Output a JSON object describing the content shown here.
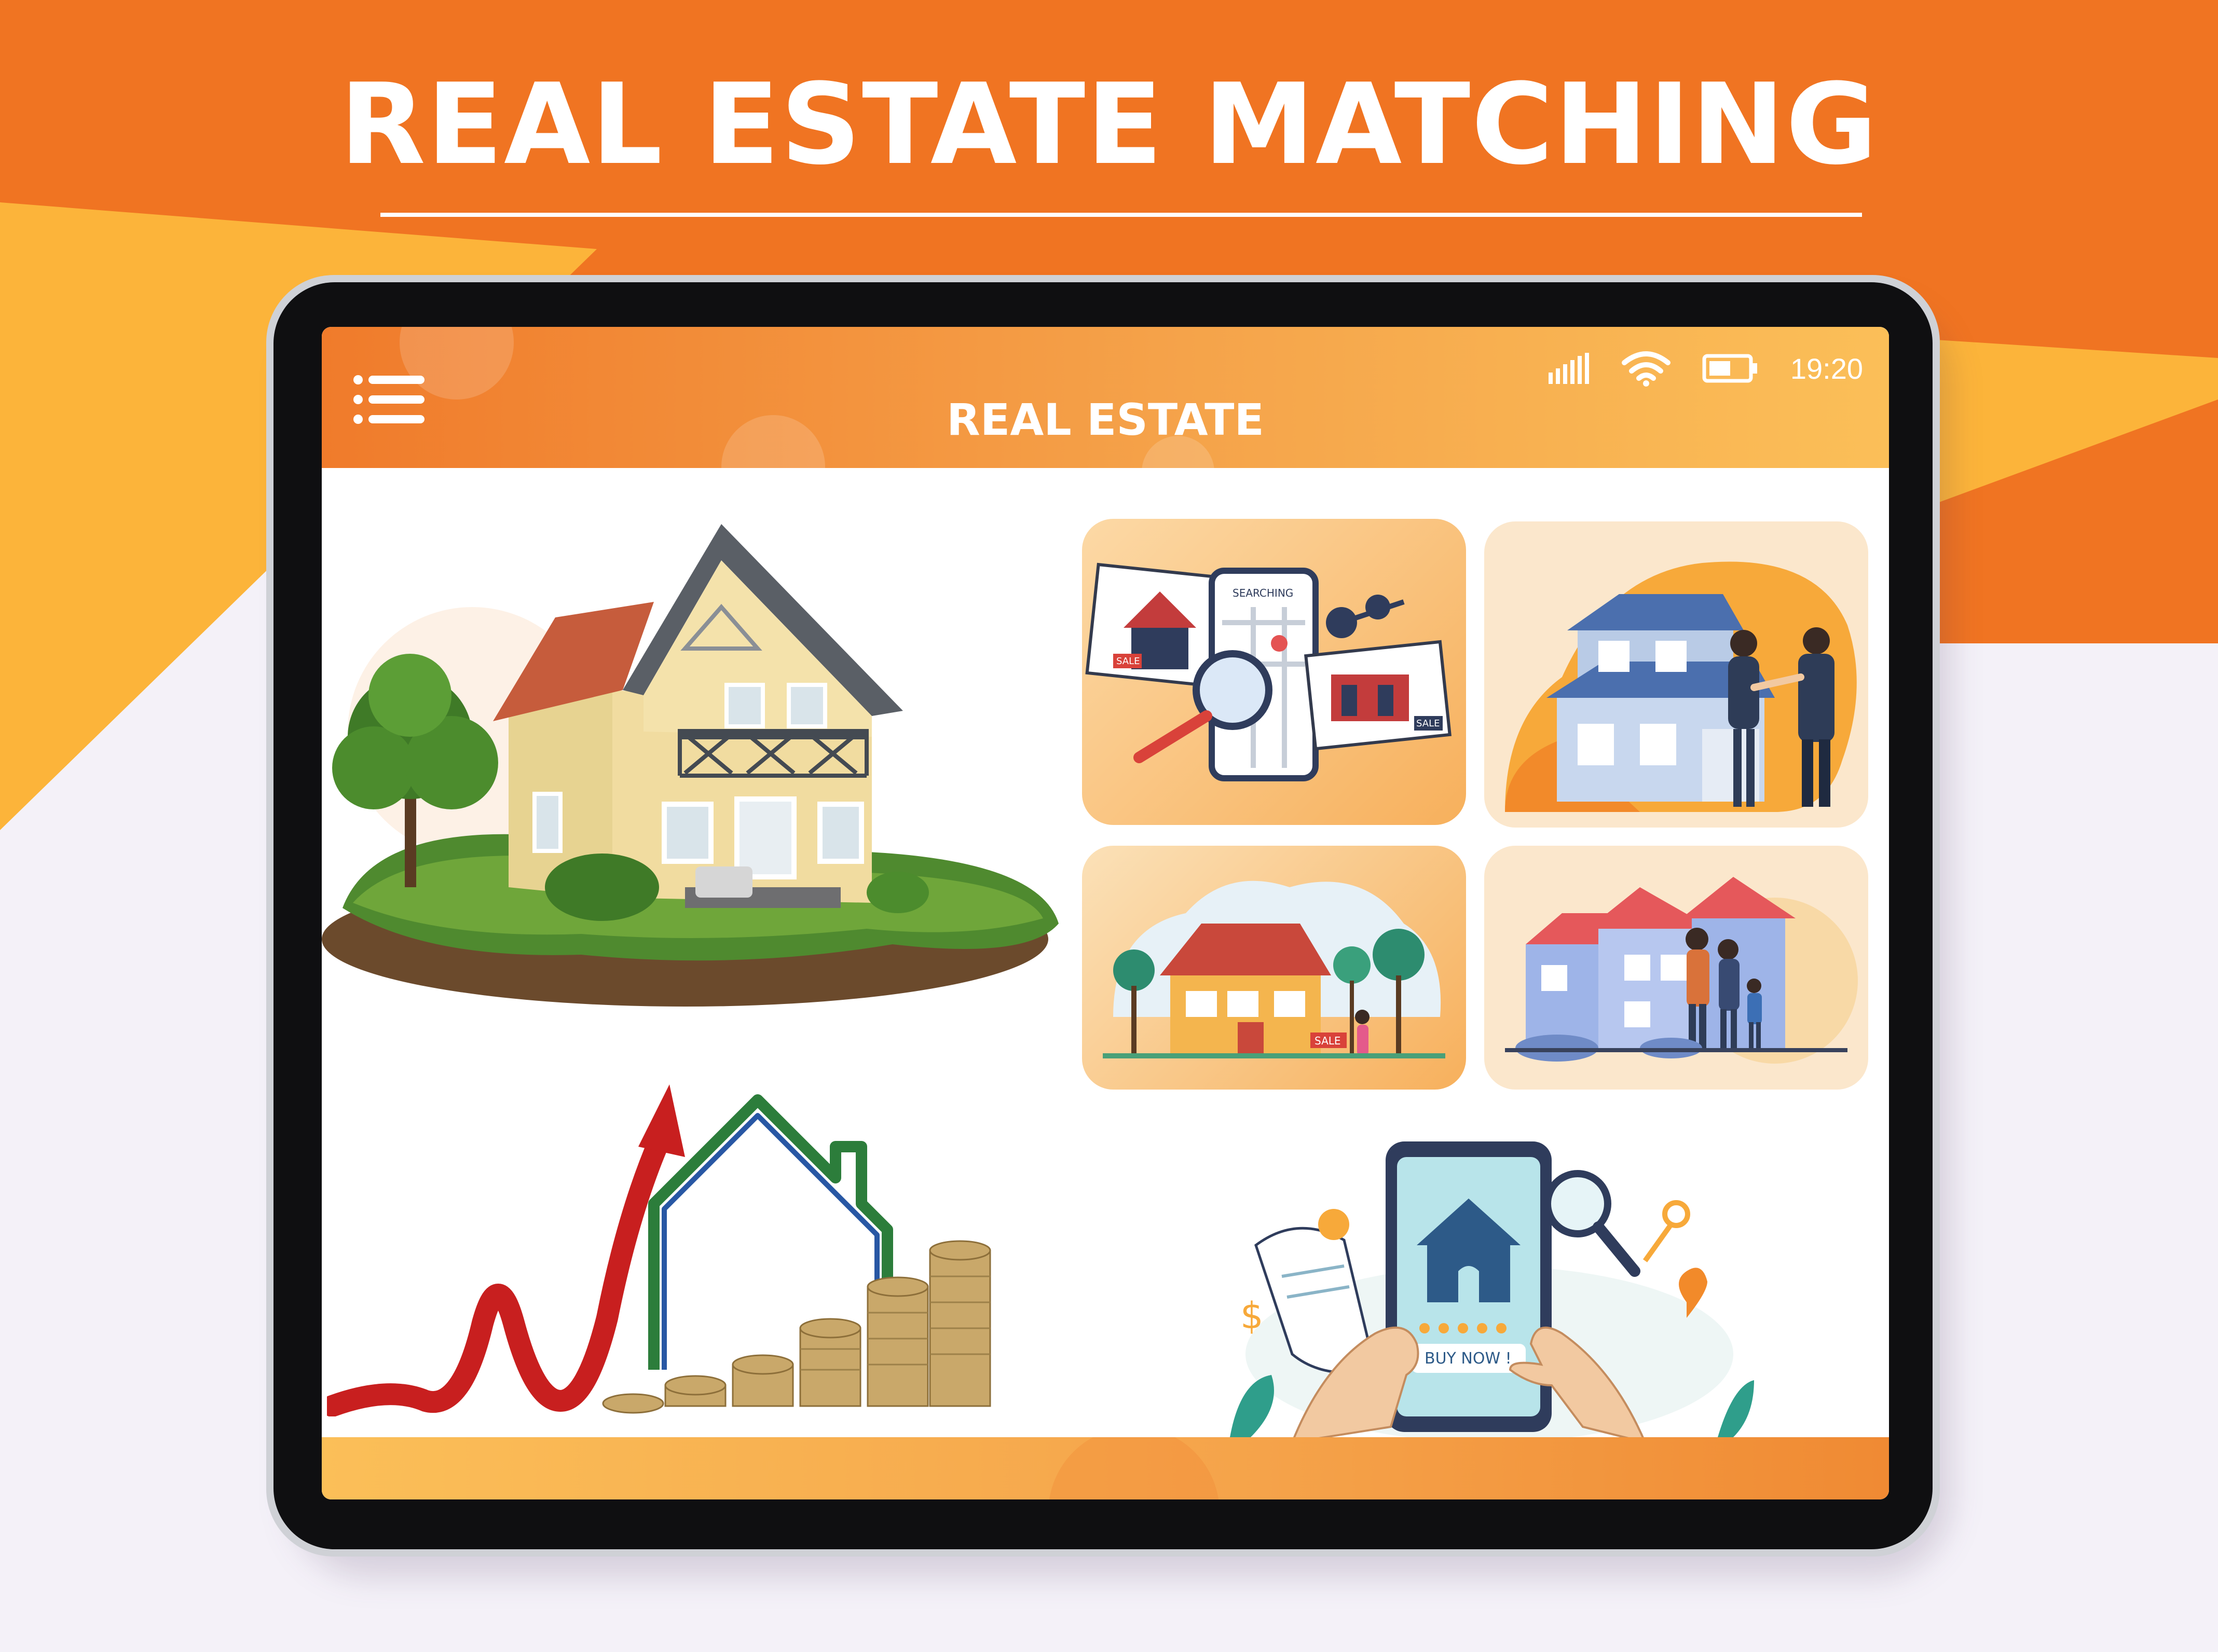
{
  "banner": {
    "title": "REAL ESTATE MATCHING"
  },
  "colors": {
    "orange": "#f07422",
    "yellow": "#fcb43a",
    "lavender": "#f4f1f8",
    "header_start": "#f07b2b",
    "header_end": "#fbbf58",
    "sale_red": "#d9423a"
  },
  "status_bar": {
    "signal_icon": "signal-bars-icon",
    "wifi_icon": "wifi-icon",
    "battery_icon": "battery-icon",
    "time": "19:20"
  },
  "app": {
    "title": "REAL ESTATE",
    "menu_icon": "hamburger-menu-icon"
  },
  "cards": [
    {
      "name": "property-search-card",
      "icon": "map-search-illustration",
      "labels": [
        "SEARCHING",
        "SALE",
        "SALE"
      ]
    },
    {
      "name": "agent-handshake-card",
      "icon": "handshake-house-illustration"
    },
    {
      "name": "house-for-sale-card",
      "icon": "sale-house-illustration",
      "labels": [
        "SALE"
      ]
    },
    {
      "name": "family-home-card",
      "icon": "family-house-illustration"
    }
  ],
  "illustrations": {
    "hero_house": "suburban-house-illustration",
    "growth_chart": "rising-prices-illustration",
    "buy_app": "buy-house-app-illustration",
    "buy_button": "BUY NOW !"
  }
}
